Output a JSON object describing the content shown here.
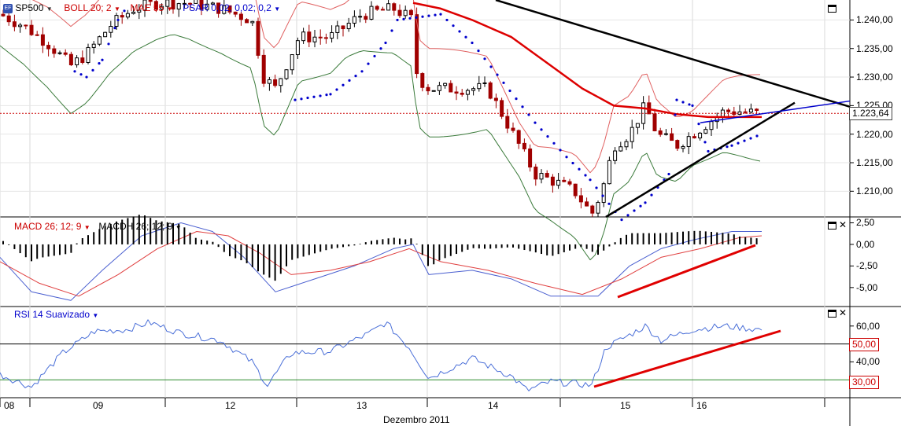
{
  "chart_data": [
    {
      "type": "candlestick",
      "symbol_label": "SP500",
      "symbol_badge": "EF",
      "indicators": [
        {
          "name": "BOLL 20; 2",
          "color": "#cc0000"
        },
        {
          "name": "MAE 55",
          "color": "#cc0000"
        },
        {
          "name": "PSAR 0,02; 0,02; 0,2",
          "color": "#0000cc"
        }
      ],
      "ylim": [
        1205.5,
        1243.5
      ],
      "yticks": [
        "1.240,00",
        "1.235,00",
        "1.230,00",
        "1.225,00",
        "1.220,00",
        "1.215,00",
        "1.210,00"
      ],
      "ytick_values": [
        1240,
        1235,
        1230,
        1225,
        1220,
        1215,
        1210
      ],
      "last_price_label": "1.223,64",
      "last_price": 1223.64,
      "trendline_annotations": "black descending resistance, black ascending support, blue support line"
    },
    {
      "type": "line",
      "title_macd": "MACD 26; 12; 9",
      "title_macdh": "MACDH 26; 12; 9",
      "ylim": [
        -7.2,
        3.0
      ],
      "yticks": [
        "2,50",
        "0,00",
        "-2,50",
        "-5,00"
      ],
      "ytick_values": [
        2.5,
        0,
        -2.5,
        -5.0
      ]
    },
    {
      "type": "line",
      "title": "RSI 14 Suavizado",
      "ylim": [
        20,
        70
      ],
      "yticks": [
        "60,00",
        "40,00"
      ],
      "ytick_values": [
        60,
        40
      ],
      "levels": [
        {
          "label": "50,00",
          "value": 50
        },
        {
          "label": "30,00",
          "value": 30
        }
      ]
    }
  ],
  "xaxis": {
    "day_labels": [
      "08",
      "09",
      "12",
      "13",
      "14",
      "15",
      "16"
    ],
    "month_label": "Dezembro 2011"
  },
  "colors": {
    "bull": "#000000",
    "bear": "#a00000",
    "mae": "#dd0000",
    "boll_upper": "#e06060",
    "boll_lower": "#3a7a3a",
    "psar": "#0000cc",
    "macd": "#4a5fd0",
    "signal": "#e04040",
    "rsi": "#4a6fd8"
  },
  "icons": [
    "pane-maximize-icon",
    "pane-close-icon",
    "dropdown-arrow-icon"
  ]
}
